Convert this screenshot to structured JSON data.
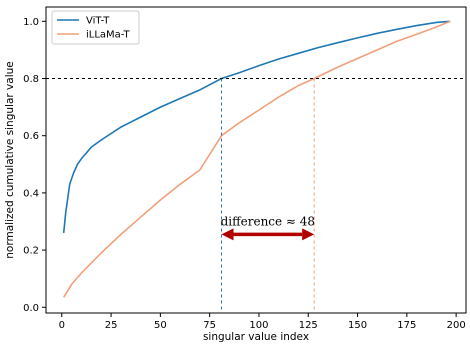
{
  "chart_data": {
    "type": "line",
    "xlabel": "singular value index",
    "ylabel": "normalized cumulative singular value",
    "xlim": [
      -8,
      205
    ],
    "ylim": [
      -0.02,
      1.05
    ],
    "xticks": [
      0,
      25,
      50,
      75,
      100,
      125,
      150,
      175,
      200
    ],
    "yticks": [
      0.0,
      0.2,
      0.4,
      0.6,
      0.8,
      1.0
    ],
    "grid": false,
    "legend_position": "top-left",
    "series": [
      {
        "name": "ViT-T",
        "color": "#1f77b4",
        "x": [
          1,
          2,
          4,
          6,
          8,
          10,
          15,
          20,
          30,
          40,
          50,
          60,
          70,
          81,
          90,
          100,
          110,
          120,
          130,
          140,
          150,
          160,
          170,
          180,
          190,
          197
        ],
        "y": [
          0.26,
          0.33,
          0.43,
          0.47,
          0.5,
          0.52,
          0.56,
          0.585,
          0.63,
          0.665,
          0.7,
          0.73,
          0.76,
          0.8,
          0.82,
          0.845,
          0.868,
          0.888,
          0.908,
          0.925,
          0.942,
          0.958,
          0.972,
          0.985,
          0.996,
          1.0
        ]
      },
      {
        "name": "iLLaMa-T",
        "color": "#f0a07a",
        "x": [
          1,
          5,
          10,
          20,
          30,
          40,
          50,
          60,
          70,
          81,
          90,
          100,
          110,
          120,
          128,
          140,
          150,
          160,
          170,
          180,
          190,
          197
        ],
        "y": [
          0.035,
          0.08,
          0.12,
          0.19,
          0.255,
          0.315,
          0.375,
          0.43,
          0.48,
          0.6,
          0.645,
          0.69,
          0.735,
          0.775,
          0.8,
          0.84,
          0.87,
          0.9,
          0.93,
          0.955,
          0.98,
          1.0
        ]
      }
    ],
    "reference_lines": {
      "horizontal_y": 0.8,
      "vertical_x": [
        81,
        128
      ]
    },
    "annotation": {
      "text": "difference ≈ 48",
      "arrow_from_x": 81,
      "arrow_to_x": 128,
      "arrow_y": 0.255,
      "text_y": 0.3,
      "arrow_color": "#b00000"
    }
  }
}
